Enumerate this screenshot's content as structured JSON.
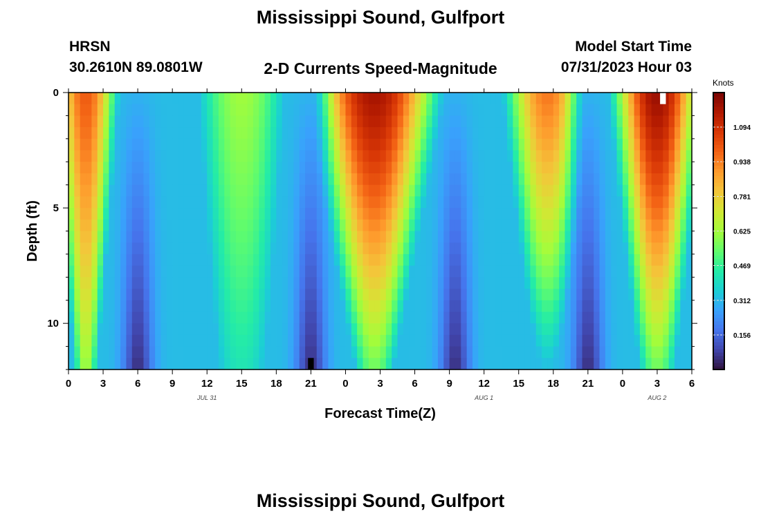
{
  "header": {
    "title": "Mississippi Sound, Gulfport",
    "station": "HRSN",
    "coordinates": "30.2610N  89.0801W",
    "product": "2-D Currents Speed-Magnitude",
    "model_start_label": "Model Start Time",
    "model_start_value": "07/31/2023 Hour 03"
  },
  "footer": {
    "title": "Mississippi Sound, Gulfport"
  },
  "chart_data": {
    "type": "heatmap",
    "title": "2-D Currents Speed-Magnitude",
    "xlabel": "Forecast Time(Z)",
    "ylabel": "Depth (ft)",
    "x_tick_labels": [
      "0",
      "3",
      "6",
      "9",
      "12",
      "15",
      "18",
      "21",
      "0",
      "3",
      "6",
      "9",
      "12",
      "15",
      "18",
      "21",
      "0",
      "3",
      "6"
    ],
    "x_range_hours": [
      0,
      54
    ],
    "y_tick_labels": [
      "0",
      "5",
      "10"
    ],
    "y_range_ft": [
      0,
      12
    ],
    "y_inverted": true,
    "date_labels": [
      {
        "text": "JUL 31",
        "hour": 12
      },
      {
        "text": "AUG 1",
        "hour": 36
      },
      {
        "text": "AUG 2",
        "hour": 51
      }
    ],
    "colorbar": {
      "title": "Knots",
      "range": [
        0.0,
        1.25
      ],
      "tick_labels": [
        "0.156",
        "0.312",
        "0.469",
        "0.625",
        "0.781",
        "0.938",
        "1.094"
      ],
      "tick_values": [
        0.156,
        0.312,
        0.469,
        0.625,
        0.781,
        0.938,
        1.094
      ],
      "colormap": [
        "#30123b",
        "#4145ab",
        "#4675ed",
        "#39a2fc",
        "#1bcfd4",
        "#24eca6",
        "#61fc6c",
        "#a4fc3b",
        "#d1e834",
        "#f3c63a",
        "#fe9b2d",
        "#f36315",
        "#d93806",
        "#b11901",
        "#7a0403"
      ]
    },
    "speed_model": {
      "description": "Tidal current speed (knots) by forecast hour and depth",
      "peaks": [
        {
          "hour": 1.5,
          "surface": 1.0,
          "bottom": 0.62,
          "half_width_surface": 2.8,
          "half_width_bottom": 1.2
        },
        {
          "hour": 15.0,
          "surface": 0.62,
          "bottom": 0.42,
          "half_width_surface": 4.5,
          "half_width_bottom": 3.5
        },
        {
          "hour": 26.5,
          "surface": 1.18,
          "bottom": 0.55,
          "half_width_surface": 5.5,
          "half_width_bottom": 2.2
        },
        {
          "hour": 41.5,
          "surface": 0.95,
          "bottom": 0.32,
          "half_width_surface": 3.8,
          "half_width_bottom": 2.0
        },
        {
          "hour": 51.0,
          "surface": 1.2,
          "bottom": 0.55,
          "half_width_surface": 3.8,
          "half_width_bottom": 2.0
        }
      ],
      "minima_hours": [
        6.0,
        21.0,
        33.5,
        45.0
      ],
      "min_surface": 0.3,
      "min_bottom": 0.05,
      "background_speed": 0.32
    },
    "missing_cells": [
      {
        "hour": 51.5,
        "depth_ft": 0.25,
        "color": "#ffffff"
      },
      {
        "hour": 21.0,
        "depth_ft": 11.75,
        "color": "#000000"
      }
    ]
  }
}
